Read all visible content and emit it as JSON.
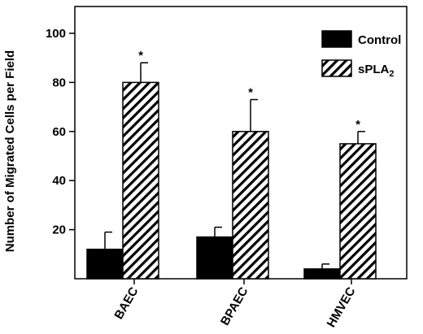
{
  "chart_data": {
    "type": "bar",
    "title": "",
    "xlabel": "",
    "ylabel": "Number of Migrated Cells per Field",
    "categories": [
      "BAEC",
      "BPAEC",
      "HMVEC"
    ],
    "ylim": [
      0,
      105
    ],
    "yticks": [
      20,
      40,
      60,
      80,
      100
    ],
    "grid": false,
    "legend": "top-right",
    "series": [
      {
        "name": "Control",
        "subscript": "",
        "pattern": "solid",
        "color": "#000000",
        "values": [
          12,
          17,
          4
        ],
        "errors": [
          7,
          4,
          2
        ],
        "significance": [
          "",
          "",
          ""
        ]
      },
      {
        "name": "sPLA",
        "subscript": "2",
        "pattern": "diagonal-hatch",
        "color": "#000000",
        "values": [
          80,
          60,
          55
        ],
        "errors": [
          8,
          13,
          5
        ],
        "significance": [
          "*",
          "*",
          "*"
        ]
      }
    ]
  }
}
